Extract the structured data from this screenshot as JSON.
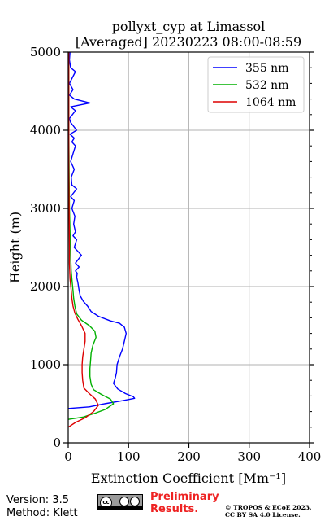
{
  "chart_data": {
    "type": "line",
    "title_line1": "pollyxt_cyp at Limassol",
    "title_line2": "[Averaged] 20230223 08:00-08:59",
    "xlabel": "Extinction Coefficient [Mm⁻¹]",
    "ylabel": "Height (m)",
    "xlim": [
      0,
      400
    ],
    "ylim": [
      0,
      5000
    ],
    "x_ticks": [
      0,
      100,
      200,
      300,
      400
    ],
    "y_ticks": [
      0,
      1000,
      2000,
      3000,
      4000,
      5000
    ],
    "grid": true,
    "legend_position": "top-right",
    "series": [
      {
        "name": "355 nm",
        "color": "#0000ff",
        "points": [
          [
            0,
            440
          ],
          [
            35,
            460
          ],
          [
            60,
            500
          ],
          [
            90,
            540
          ],
          [
            110,
            570
          ],
          [
            108,
            590
          ],
          [
            95,
            630
          ],
          [
            82,
            690
          ],
          [
            75,
            760
          ],
          [
            78,
            830
          ],
          [
            80,
            900
          ],
          [
            81,
            1000
          ],
          [
            85,
            1100
          ],
          [
            90,
            1200
          ],
          [
            93,
            1300
          ],
          [
            96,
            1400
          ],
          [
            93,
            1480
          ],
          [
            85,
            1530
          ],
          [
            70,
            1560
          ],
          [
            50,
            1620
          ],
          [
            38,
            1680
          ],
          [
            32,
            1750
          ],
          [
            25,
            1810
          ],
          [
            20,
            1880
          ],
          [
            18,
            1950
          ],
          [
            16,
            2050
          ],
          [
            14,
            2120
          ],
          [
            15,
            2170
          ],
          [
            12,
            2200
          ],
          [
            18,
            2250
          ],
          [
            12,
            2300
          ],
          [
            22,
            2400
          ],
          [
            16,
            2450
          ],
          [
            10,
            2500
          ],
          [
            14,
            2600
          ],
          [
            8,
            2650
          ],
          [
            12,
            2700
          ],
          [
            9,
            2800
          ],
          [
            11,
            2900
          ],
          [
            6,
            3000
          ],
          [
            10,
            3100
          ],
          [
            4,
            3150
          ],
          [
            14,
            3250
          ],
          [
            6,
            3300
          ],
          [
            5,
            3400
          ],
          [
            10,
            3500
          ],
          [
            4,
            3600
          ],
          [
            8,
            3700
          ],
          [
            12,
            3800
          ],
          [
            6,
            3850
          ],
          [
            10,
            3900
          ],
          [
            3,
            3950
          ],
          [
            14,
            4000
          ],
          [
            4,
            4100
          ],
          [
            2,
            4150
          ],
          [
            12,
            4250
          ],
          [
            4,
            4300
          ],
          [
            36,
            4350
          ],
          [
            10,
            4400
          ],
          [
            2,
            4450
          ],
          [
            8,
            4520
          ],
          [
            2,
            4600
          ],
          [
            12,
            4750
          ],
          [
            4,
            4800
          ],
          [
            2,
            4900
          ],
          [
            3,
            5000
          ]
        ]
      },
      {
        "name": "532 nm",
        "color": "#00b000",
        "points": [
          [
            0,
            300
          ],
          [
            25,
            330
          ],
          [
            45,
            380
          ],
          [
            62,
            430
          ],
          [
            75,
            500
          ],
          [
            70,
            560
          ],
          [
            55,
            620
          ],
          [
            42,
            680
          ],
          [
            38,
            750
          ],
          [
            36,
            850
          ],
          [
            36,
            950
          ],
          [
            37,
            1050
          ],
          [
            38,
            1150
          ],
          [
            41,
            1250
          ],
          [
            46,
            1350
          ],
          [
            44,
            1430
          ],
          [
            35,
            1500
          ],
          [
            22,
            1570
          ],
          [
            14,
            1650
          ],
          [
            11,
            1750
          ],
          [
            9,
            1850
          ],
          [
            8,
            1950
          ],
          [
            6,
            2100
          ],
          [
            5,
            2200
          ],
          [
            4,
            2400
          ],
          [
            3,
            2700
          ],
          [
            2,
            3000
          ],
          [
            1.5,
            3500
          ],
          [
            1,
            4000
          ],
          [
            1,
            4500
          ],
          [
            1,
            5000
          ]
        ]
      },
      {
        "name": "1064 nm",
        "color": "#dd0000",
        "points": [
          [
            0,
            200
          ],
          [
            12,
            260
          ],
          [
            28,
            320
          ],
          [
            42,
            400
          ],
          [
            50,
            480
          ],
          [
            45,
            560
          ],
          [
            35,
            630
          ],
          [
            26,
            700
          ],
          [
            24,
            800
          ],
          [
            23,
            900
          ],
          [
            23,
            1000
          ],
          [
            24,
            1100
          ],
          [
            26,
            1200
          ],
          [
            28,
            1300
          ],
          [
            28,
            1400
          ],
          [
            22,
            1500
          ],
          [
            16,
            1580
          ],
          [
            11,
            1660
          ],
          [
            8,
            1750
          ],
          [
            6,
            1850
          ],
          [
            5,
            1950
          ],
          [
            3,
            2100
          ],
          [
            2,
            2300
          ],
          [
            2,
            2500
          ],
          [
            1.5,
            3000
          ],
          [
            1,
            3500
          ],
          [
            1,
            4000
          ],
          [
            1,
            4500
          ],
          [
            1,
            5000
          ]
        ]
      }
    ]
  },
  "footer": {
    "version": "Version: 3.5",
    "method": "Method: Klett",
    "preliminary_line1": "Preliminary",
    "preliminary_line2": "Results.",
    "copyright_line1": "© TROPOS & ECoE 2023.",
    "copyright_line2": "CC BY SA 4.0 License.",
    "license_badge": "cc",
    "preliminary_color": "#ee2222"
  }
}
